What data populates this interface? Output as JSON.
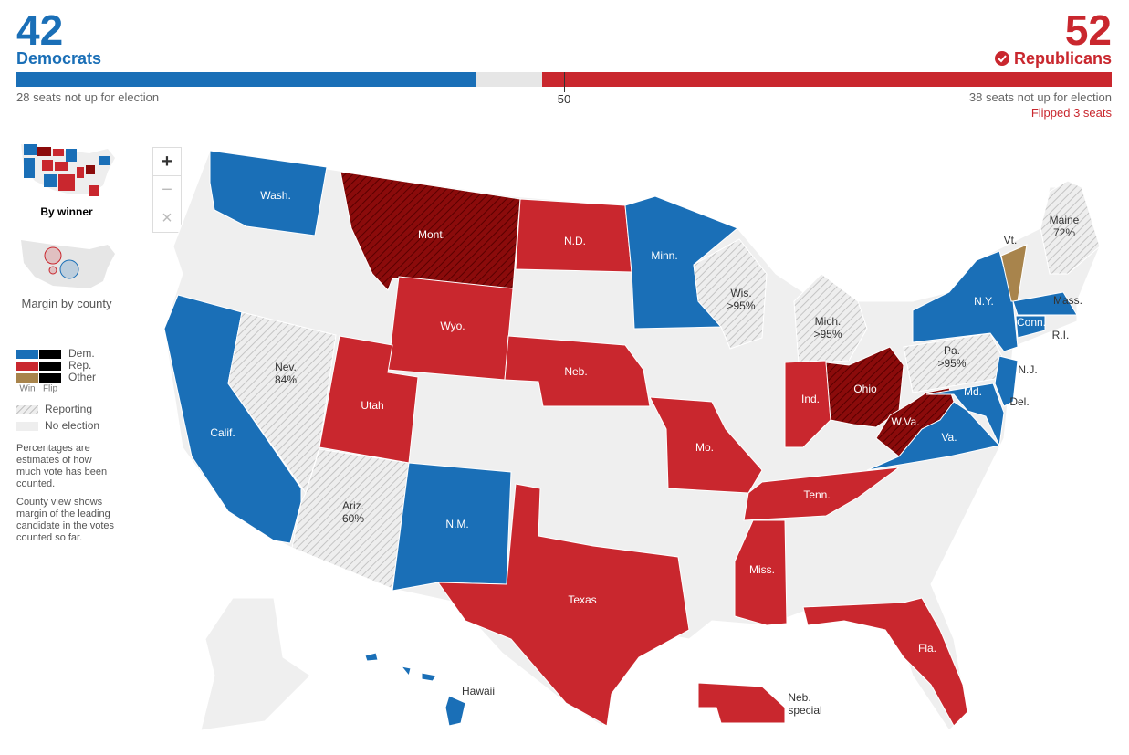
{
  "header": {
    "dem": {
      "count": 42,
      "label": "Democrats",
      "note": "28 seats not up for election"
    },
    "rep": {
      "count": 52,
      "label": "Republicans",
      "note": "38 seats not up for election",
      "flipped": "Flipped 3 seats"
    },
    "majority": 50
  },
  "controls": [
    "+",
    "−",
    "×"
  ],
  "views": [
    "By winner",
    "Margin by county"
  ],
  "legend": {
    "dem": "Dem.",
    "rep": "Rep.",
    "other": "Other",
    "win": "Win",
    "flip": "Flip",
    "reporting": "Reporting",
    "none": "No election",
    "notes": [
      "Percentages are estimates of how much vote has been counted.",
      "County view shows margin of the leading candidate in the votes counted so far."
    ]
  },
  "map": {
    "states": [
      {
        "label": "Wash."
      },
      {
        "label": "Mont."
      },
      {
        "label": "N.D."
      },
      {
        "label": "Minn."
      },
      {
        "label": "Wis.",
        "pct": ">95%"
      },
      {
        "label": "Mich.",
        "pct": ">95%"
      },
      {
        "label": "Wyo."
      },
      {
        "label": "Neb."
      },
      {
        "label": "Nev.",
        "pct": "84%"
      },
      {
        "label": "Utah"
      },
      {
        "label": "Calif."
      },
      {
        "label": "Ariz.",
        "pct": "60%"
      },
      {
        "label": "N.M."
      },
      {
        "label": "Texas"
      },
      {
        "label": "Mo."
      },
      {
        "label": "Ind."
      },
      {
        "label": "Ohio"
      },
      {
        "label": "W.Va."
      },
      {
        "label": "Va."
      },
      {
        "label": "Tenn."
      },
      {
        "label": "Miss."
      },
      {
        "label": "Fla."
      },
      {
        "label": "Pa.",
        "pct": ">95%"
      },
      {
        "label": "N.Y."
      },
      {
        "label": "Vt."
      },
      {
        "label": "Maine",
        "pct": "72%"
      },
      {
        "label": "Mass."
      },
      {
        "label": "Conn."
      },
      {
        "label": "R.I."
      },
      {
        "label": "N.J."
      },
      {
        "label": "Md."
      },
      {
        "label": "Del."
      },
      {
        "label": "Hawaii"
      },
      {
        "label": "Neb.",
        "sub": "special"
      }
    ]
  }
}
